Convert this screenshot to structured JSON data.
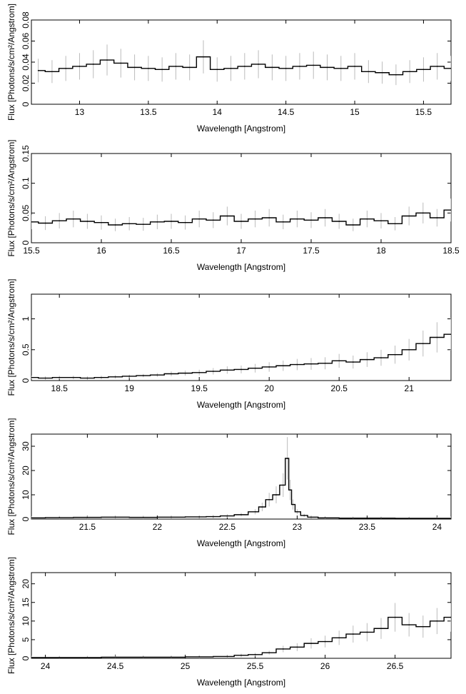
{
  "chart_data": [
    {
      "type": "line",
      "style": "step-histogram with error bars",
      "xlabel": "Wavelength [Angstrom]",
      "ylabel": "Flux [Photons/s/cm²/Angstrom]",
      "xlim": [
        12.65,
        15.7
      ],
      "ylim": [
        0,
        0.08
      ],
      "xticks": [
        13,
        13.5,
        14,
        14.5,
        15,
        15.5
      ],
      "yticks": [
        0,
        0.02,
        0.04,
        0.06,
        0.08
      ],
      "line_color": "#000000",
      "errorbar_color": "#bbbbbb",
      "series": [
        {
          "x": [
            12.7,
            12.8,
            12.9,
            13.0,
            13.1,
            13.2,
            13.3,
            13.4,
            13.5,
            13.6,
            13.7,
            13.8,
            13.9,
            14.0,
            14.1,
            14.2,
            14.3,
            14.4,
            14.5,
            14.6,
            14.7,
            14.8,
            14.9,
            15.0,
            15.1,
            15.2,
            15.3,
            15.4,
            15.5,
            15.6,
            15.7
          ],
          "y": [
            0.032,
            0.031,
            0.034,
            0.036,
            0.038,
            0.042,
            0.039,
            0.035,
            0.034,
            0.033,
            0.036,
            0.035,
            0.045,
            0.033,
            0.034,
            0.036,
            0.038,
            0.035,
            0.034,
            0.036,
            0.037,
            0.035,
            0.034,
            0.036,
            0.031,
            0.03,
            0.028,
            0.031,
            0.033,
            0.036,
            0.034
          ]
        }
      ]
    },
    {
      "type": "line",
      "style": "step-histogram with error bars",
      "xlabel": "Wavelength [Angstrom]",
      "ylabel": "Flux [Photons/s/cm²/Angstrom]",
      "xlim": [
        15.5,
        18.5
      ],
      "ylim": [
        0,
        0.15
      ],
      "xticks": [
        15.5,
        16,
        16.5,
        17,
        17.5,
        18,
        18.5
      ],
      "yticks": [
        0,
        0.05,
        0.1,
        0.15
      ],
      "line_color": "#000000",
      "errorbar_color": "#bbbbbb",
      "series": [
        {
          "x": [
            15.5,
            15.6,
            15.7,
            15.8,
            15.9,
            16.0,
            16.1,
            16.2,
            16.3,
            16.4,
            16.5,
            16.6,
            16.7,
            16.8,
            16.9,
            17.0,
            17.1,
            17.2,
            17.3,
            17.4,
            17.5,
            17.6,
            17.7,
            17.8,
            17.9,
            18.0,
            18.1,
            18.2,
            18.3,
            18.4,
            18.5
          ],
          "y": [
            0.035,
            0.033,
            0.037,
            0.04,
            0.036,
            0.034,
            0.03,
            0.032,
            0.031,
            0.035,
            0.036,
            0.034,
            0.04,
            0.038,
            0.045,
            0.036,
            0.04,
            0.042,
            0.035,
            0.04,
            0.038,
            0.042,
            0.036,
            0.03,
            0.04,
            0.037,
            0.032,
            0.045,
            0.05,
            0.042,
            0.055
          ]
        }
      ]
    },
    {
      "type": "line",
      "style": "step-histogram with error bars",
      "xlabel": "Wavelength [Angstrom]",
      "ylabel": "Flux [Photons/s/cm²/Angstrom]",
      "xlim": [
        18.3,
        21.3
      ],
      "ylim": [
        0,
        1.4
      ],
      "xticks": [
        18.5,
        19,
        19.5,
        20,
        20.5,
        21
      ],
      "yticks": [
        0,
        0.5,
        1
      ],
      "line_color": "#000000",
      "errorbar_color": "#bbbbbb",
      "series": [
        {
          "x": [
            18.3,
            18.4,
            18.5,
            18.6,
            18.7,
            18.8,
            18.9,
            19.0,
            19.1,
            19.2,
            19.3,
            19.4,
            19.5,
            19.6,
            19.7,
            19.8,
            19.9,
            20.0,
            20.1,
            20.2,
            20.3,
            20.4,
            20.5,
            20.6,
            20.7,
            20.8,
            20.9,
            21.0,
            21.1,
            21.2,
            21.3
          ],
          "y": [
            0.05,
            0.04,
            0.05,
            0.05,
            0.04,
            0.05,
            0.06,
            0.07,
            0.08,
            0.09,
            0.11,
            0.12,
            0.13,
            0.15,
            0.17,
            0.18,
            0.2,
            0.22,
            0.24,
            0.26,
            0.27,
            0.28,
            0.32,
            0.3,
            0.34,
            0.37,
            0.42,
            0.5,
            0.6,
            0.7,
            0.75
          ]
        }
      ]
    },
    {
      "type": "line",
      "style": "step-histogram with error bars",
      "xlabel": "Wavelength [Angstrom]",
      "ylabel": "Flux [Photons/s/cm²/Angstrom]",
      "xlim": [
        21.1,
        24.1
      ],
      "ylim": [
        0,
        35
      ],
      "xticks": [
        21.5,
        22,
        22.5,
        23,
        23.5,
        24
      ],
      "yticks": [
        0,
        10,
        20,
        30
      ],
      "line_color": "#000000",
      "errorbar_color": "#bbbbbb",
      "series": [
        {
          "x": [
            21.1,
            21.3,
            21.5,
            21.7,
            21.9,
            22.1,
            22.3,
            22.4,
            22.5,
            22.6,
            22.7,
            22.75,
            22.8,
            22.85,
            22.9,
            22.93,
            22.95,
            22.97,
            23.0,
            23.05,
            23.1,
            23.2,
            23.4,
            23.6,
            23.8,
            24.0,
            24.1
          ],
          "y": [
            0.5,
            0.6,
            0.7,
            0.8,
            0.7,
            0.8,
            0.9,
            1.0,
            1.3,
            1.8,
            3.0,
            5.0,
            8.0,
            10.0,
            14.0,
            25.0,
            12.0,
            6.0,
            3.0,
            1.5,
            0.8,
            0.5,
            0.4,
            0.4,
            0.3,
            0.3,
            0.3
          ]
        }
      ]
    },
    {
      "type": "line",
      "style": "step-histogram with error bars",
      "xlabel": "Wavelength [Angstrom]",
      "ylabel": "Flux [Photons/s/cm²/Angstrom]",
      "xlim": [
        23.9,
        26.9
      ],
      "ylim": [
        0,
        23
      ],
      "xticks": [
        24,
        24.5,
        25,
        25.5,
        26,
        26.5
      ],
      "yticks": [
        0,
        5,
        10,
        15,
        20
      ],
      "line_color": "#000000",
      "errorbar_color": "#bbbbbb",
      "series": [
        {
          "x": [
            23.9,
            24.1,
            24.3,
            24.5,
            24.7,
            24.9,
            25.1,
            25.3,
            25.4,
            25.5,
            25.6,
            25.7,
            25.8,
            25.9,
            26.0,
            26.1,
            26.2,
            26.3,
            26.4,
            26.5,
            26.6,
            26.7,
            26.8,
            26.9
          ],
          "y": [
            0.2,
            0.2,
            0.2,
            0.3,
            0.3,
            0.3,
            0.4,
            0.5,
            0.8,
            1.0,
            1.5,
            2.5,
            3.0,
            4.0,
            4.5,
            5.5,
            6.5,
            7.0,
            8.0,
            11.0,
            9.0,
            8.5,
            10.0,
            11.0
          ]
        }
      ]
    }
  ]
}
